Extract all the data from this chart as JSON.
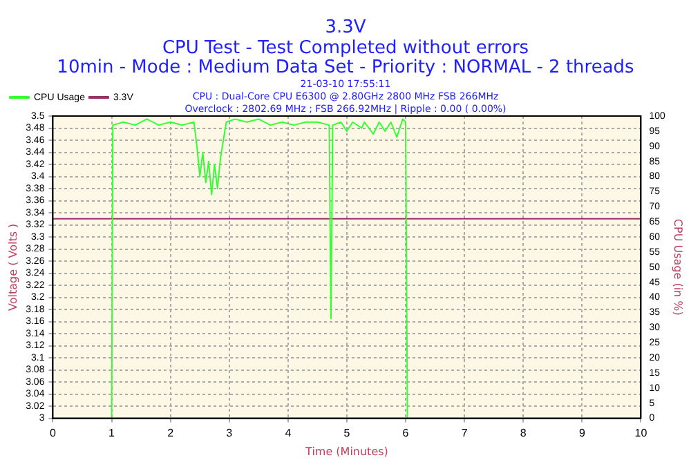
{
  "chart_data": {
    "type": "line",
    "title": "3.3V",
    "subtitle": "CPU Test - Test Completed without errors\n10min - Mode : Medium Data Set - Priority : NORMAL - 2 threads",
    "annotations": [
      "21-03-10 17:55:11",
      "CPU : Dual-Core CPU E6300 @ 2.80GHz 2800 MHz FSB 266MHz",
      "Overclock : 2802.69 MHz ; FSB 266.92MHz | Ripple : 0.00 ( 0.00%)"
    ],
    "xlabel": "Time (Minutes)",
    "ylabel": "Voltage ( Volts )",
    "y2label": "CPU Usage (in %)",
    "xlim": [
      0,
      10
    ],
    "xticks": [
      0,
      1,
      2,
      3,
      4,
      5,
      6,
      7,
      8,
      9,
      10
    ],
    "ylim": [
      3,
      3.5
    ],
    "yticks": [
      3,
      3.02,
      3.04,
      3.06,
      3.08,
      3.1,
      3.12,
      3.14,
      3.16,
      3.18,
      3.2,
      3.22,
      3.24,
      3.26,
      3.28,
      3.3,
      3.32,
      3.34,
      3.36,
      3.38,
      3.4,
      3.42,
      3.44,
      3.46,
      3.48,
      3.5
    ],
    "y2lim": [
      0,
      100
    ],
    "y2ticks": [
      0,
      5,
      10,
      15,
      20,
      25,
      30,
      35,
      40,
      45,
      50,
      55,
      60,
      65,
      70,
      75,
      80,
      85,
      90,
      95,
      100
    ],
    "grid": true,
    "legend": "top left",
    "marker": "none",
    "line_style": "solid",
    "series": [
      {
        "name": "CPU Usage",
        "color": "#33ff33",
        "axis": "y2",
        "x": [
          1.0,
          1.02,
          1.2,
          1.4,
          1.6,
          1.8,
          2.0,
          2.2,
          2.4,
          2.45,
          2.5,
          2.55,
          2.6,
          2.65,
          2.7,
          2.75,
          2.8,
          2.85,
          2.9,
          2.95,
          3.1,
          3.3,
          3.5,
          3.7,
          3.9,
          4.1,
          4.3,
          4.5,
          4.7,
          4.73,
          4.76,
          4.9,
          5.0,
          5.1,
          5.25,
          5.3,
          5.45,
          5.55,
          5.65,
          5.75,
          5.85,
          5.95,
          6.0,
          6.03
        ],
        "values": [
          0,
          97,
          98,
          97,
          99,
          97,
          98,
          97,
          98,
          90,
          80,
          88,
          78,
          85,
          74,
          84,
          76,
          86,
          92,
          98,
          99,
          98,
          99,
          97,
          98,
          97,
          98,
          98,
          97,
          33,
          97,
          98,
          95,
          98,
          96,
          98,
          94,
          98,
          95,
          98,
          93,
          99,
          98,
          0
        ]
      },
      {
        "name": "3.3V",
        "color": "#9c2f6a",
        "x": [
          0,
          10
        ],
        "values": [
          3.33,
          3.33
        ]
      }
    ]
  }
}
